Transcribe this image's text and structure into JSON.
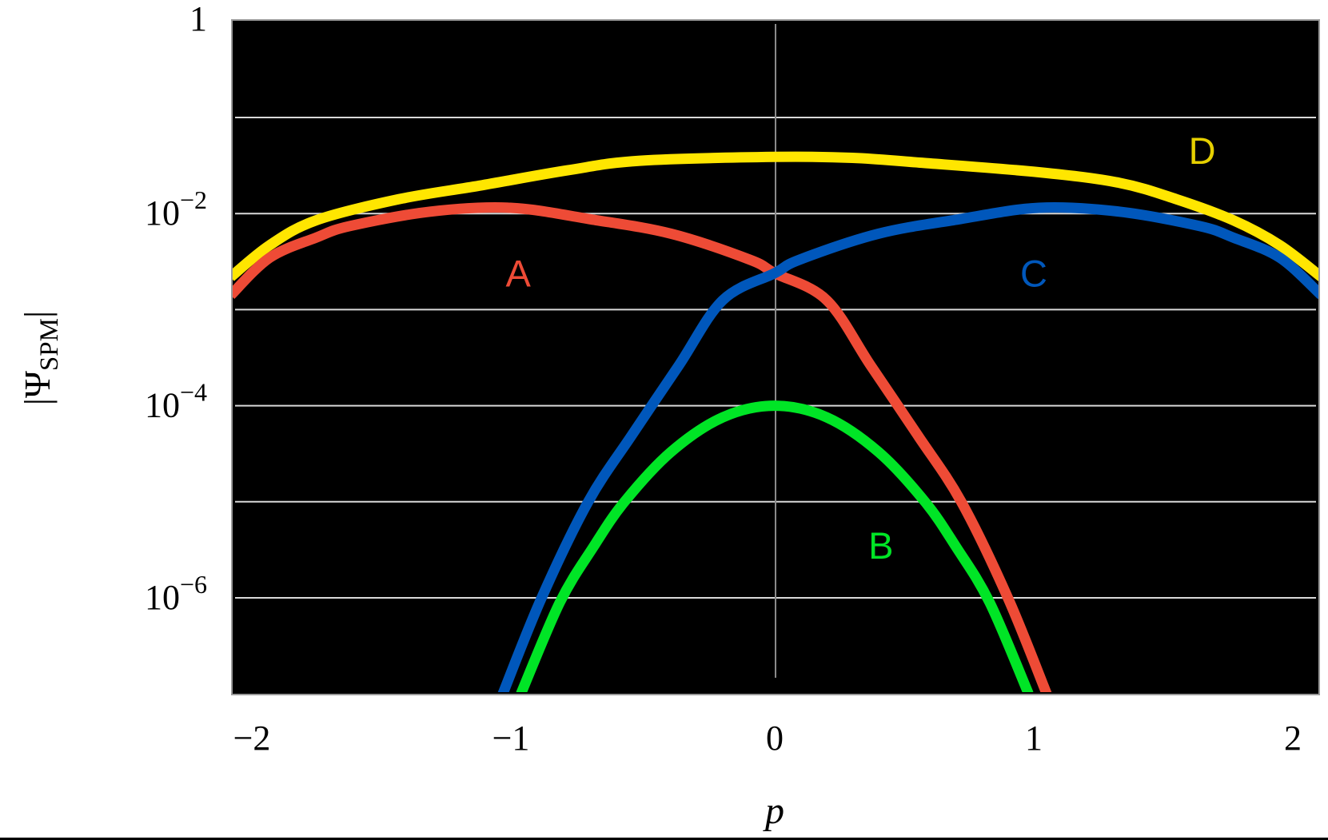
{
  "figure": {
    "ylabel": {
      "main": "|Ψ",
      "sub": "SPM",
      "close": "|"
    },
    "xlabel": "p",
    "colors": {
      "background": "#000000",
      "grid": "#d9d9d9",
      "zero_line": "#8a8a8a",
      "A": "#ee4b36",
      "B": "#00e526",
      "C": "#0057bb",
      "D": "#ffe600",
      "D_label": "#e6d000"
    }
  },
  "chart_data": {
    "type": "line",
    "title": "",
    "xlabel": "p",
    "ylabel": "|Ψ_SPM|",
    "yscale": "log",
    "xlim": [
      -2.1,
      2.11
    ],
    "ylim": [
      1e-07,
      1
    ],
    "grid": {
      "horizontal": true,
      "vertical_zero_line": true
    },
    "x_ticks": [
      {
        "value": -2,
        "label": "−2"
      },
      {
        "value": -1,
        "label": "−1"
      },
      {
        "value": 0,
        "label": "0"
      },
      {
        "value": 1,
        "label": "1"
      },
      {
        "value": 2,
        "label": "2"
      }
    ],
    "y_ticks": [
      {
        "exp": 0,
        "label": "1",
        "base": "",
        "sup": ""
      },
      {
        "exp": -2,
        "label": "10^-2",
        "base": "10",
        "sup": "−2"
      },
      {
        "exp": -4,
        "label": "10^-4",
        "base": "10",
        "sup": "−4"
      },
      {
        "exp": -6,
        "label": "10^-6",
        "base": "10",
        "sup": "−6"
      }
    ],
    "gridline_exponents": [
      -1,
      -2,
      -3,
      -4,
      -5,
      -6
    ],
    "series": [
      {
        "name": "A",
        "color": "#ee4b36",
        "label_pos": {
          "p": -0.99,
          "log10": -2.62
        },
        "points_log10": [
          [
            -2.1,
            -2.85
          ],
          [
            -1.95,
            -2.46
          ],
          [
            -1.77,
            -2.25
          ],
          [
            -1.64,
            -2.13
          ],
          [
            -1.33,
            -1.98
          ],
          [
            -1.02,
            -1.94
          ],
          [
            -0.71,
            -2.06
          ],
          [
            -0.4,
            -2.21
          ],
          [
            -0.096,
            -2.48
          ],
          [
            0.0,
            -2.62
          ],
          [
            0.2,
            -2.9
          ],
          [
            0.37,
            -3.58
          ],
          [
            0.55,
            -4.3
          ],
          [
            0.72,
            -5.0
          ],
          [
            0.9,
            -6.0
          ],
          [
            1.05,
            -7.0
          ]
        ]
      },
      {
        "name": "B",
        "color": "#00e526",
        "label_pos": {
          "p": 0.41,
          "log10": -5.45
        },
        "points_log10": [
          [
            -0.98,
            -7.0
          ],
          [
            -0.83,
            -6.05
          ],
          [
            -0.7,
            -5.47
          ],
          [
            -0.58,
            -5.0
          ],
          [
            -0.4,
            -4.48
          ],
          [
            -0.2,
            -4.12
          ],
          [
            0.0,
            -4.0
          ],
          [
            0.2,
            -4.12
          ],
          [
            0.4,
            -4.48
          ],
          [
            0.58,
            -5.0
          ],
          [
            0.7,
            -5.47
          ],
          [
            0.83,
            -6.05
          ],
          [
            0.98,
            -7.0
          ]
        ]
      },
      {
        "name": "C",
        "color": "#0057bb",
        "label_pos": {
          "p": 1.0,
          "log10": -2.62
        },
        "points_log10": [
          [
            -1.05,
            -7.0
          ],
          [
            -0.9,
            -6.0
          ],
          [
            -0.72,
            -5.0
          ],
          [
            -0.55,
            -4.3
          ],
          [
            -0.37,
            -3.58
          ],
          [
            -0.2,
            -2.9
          ],
          [
            0.0,
            -2.62
          ],
          [
            0.096,
            -2.48
          ],
          [
            0.4,
            -2.21
          ],
          [
            0.71,
            -2.06
          ],
          [
            1.02,
            -1.94
          ],
          [
            1.33,
            -1.98
          ],
          [
            1.64,
            -2.13
          ],
          [
            1.77,
            -2.25
          ],
          [
            1.95,
            -2.46
          ],
          [
            2.11,
            -2.85
          ]
        ]
      },
      {
        "name": "D",
        "color": "#ffe600",
        "label_pos": {
          "p": 1.65,
          "log10": -1.34
        },
        "points_log10": [
          [
            -2.1,
            -2.66
          ],
          [
            -1.95,
            -2.33
          ],
          [
            -1.77,
            -2.07
          ],
          [
            -1.45,
            -1.85
          ],
          [
            -1.14,
            -1.71
          ],
          [
            -0.8,
            -1.55
          ],
          [
            -0.52,
            -1.45
          ],
          [
            0.0,
            -1.41
          ],
          [
            0.3,
            -1.42
          ],
          [
            0.56,
            -1.47
          ],
          [
            1.02,
            -1.57
          ],
          [
            1.33,
            -1.68
          ],
          [
            1.55,
            -1.85
          ],
          [
            1.77,
            -2.07
          ],
          [
            1.95,
            -2.33
          ],
          [
            2.11,
            -2.66
          ]
        ]
      }
    ]
  }
}
